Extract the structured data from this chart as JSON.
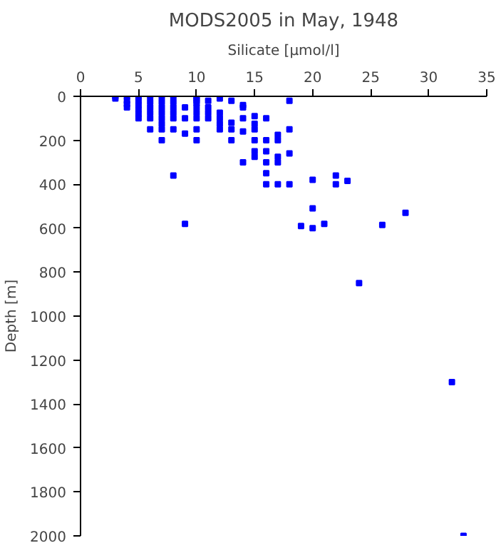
{
  "chart_data": {
    "type": "scatter",
    "title": "MODS2005 in May, 1948",
    "xlabel": "Silicate [µmol/l]",
    "ylabel": "Depth [m]",
    "xlim": [
      0,
      35
    ],
    "xticks": [
      0,
      5,
      10,
      15,
      20,
      25,
      30,
      35
    ],
    "ylim": [
      2000,
      0
    ],
    "yticks": [
      0,
      200,
      400,
      600,
      800,
      1000,
      1200,
      1400,
      1600,
      1800,
      2000
    ],
    "grid": false,
    "marker": "square",
    "series": [
      {
        "color": "#0000ff",
        "x": [
          3,
          3,
          4,
          4,
          4,
          4,
          5,
          5,
          5,
          5,
          5,
          5,
          6,
          6,
          6,
          6,
          6,
          6,
          7,
          7,
          7,
          7,
          7,
          7,
          7,
          7,
          8,
          8,
          8,
          8,
          8,
          8,
          8,
          9,
          9,
          9,
          9,
          10,
          10,
          10,
          10,
          10,
          10,
          10,
          10,
          10,
          11,
          11,
          11,
          11,
          12,
          12,
          12,
          12,
          12,
          13,
          13,
          13,
          13,
          14,
          14,
          14,
          14,
          14,
          15,
          15,
          15,
          15,
          15,
          15,
          16,
          16,
          16,
          16,
          16,
          16,
          17,
          17,
          17,
          17,
          17,
          18,
          18,
          18,
          18,
          19,
          20,
          20,
          20,
          21,
          22,
          22,
          23,
          24,
          26,
          28,
          32,
          33
        ],
        "values": [
          0,
          10,
          0,
          20,
          35,
          50,
          0,
          20,
          40,
          60,
          80,
          100,
          0,
          25,
          50,
          75,
          100,
          150,
          0,
          25,
          50,
          75,
          100,
          125,
          150,
          200,
          0,
          25,
          50,
          75,
          100,
          150,
          360,
          50,
          100,
          170,
          580,
          0,
          10,
          20,
          30,
          50,
          75,
          100,
          150,
          200,
          20,
          50,
          75,
          100,
          10,
          75,
          100,
          125,
          150,
          20,
          120,
          150,
          200,
          40,
          50,
          100,
          160,
          300,
          90,
          125,
          150,
          200,
          250,
          275,
          100,
          200,
          250,
          300,
          350,
          400,
          175,
          200,
          275,
          300,
          400,
          20,
          150,
          260,
          400,
          590,
          380,
          510,
          600,
          580,
          360,
          400,
          385,
          850,
          585,
          530,
          1300,
          2000
        ]
      }
    ]
  }
}
